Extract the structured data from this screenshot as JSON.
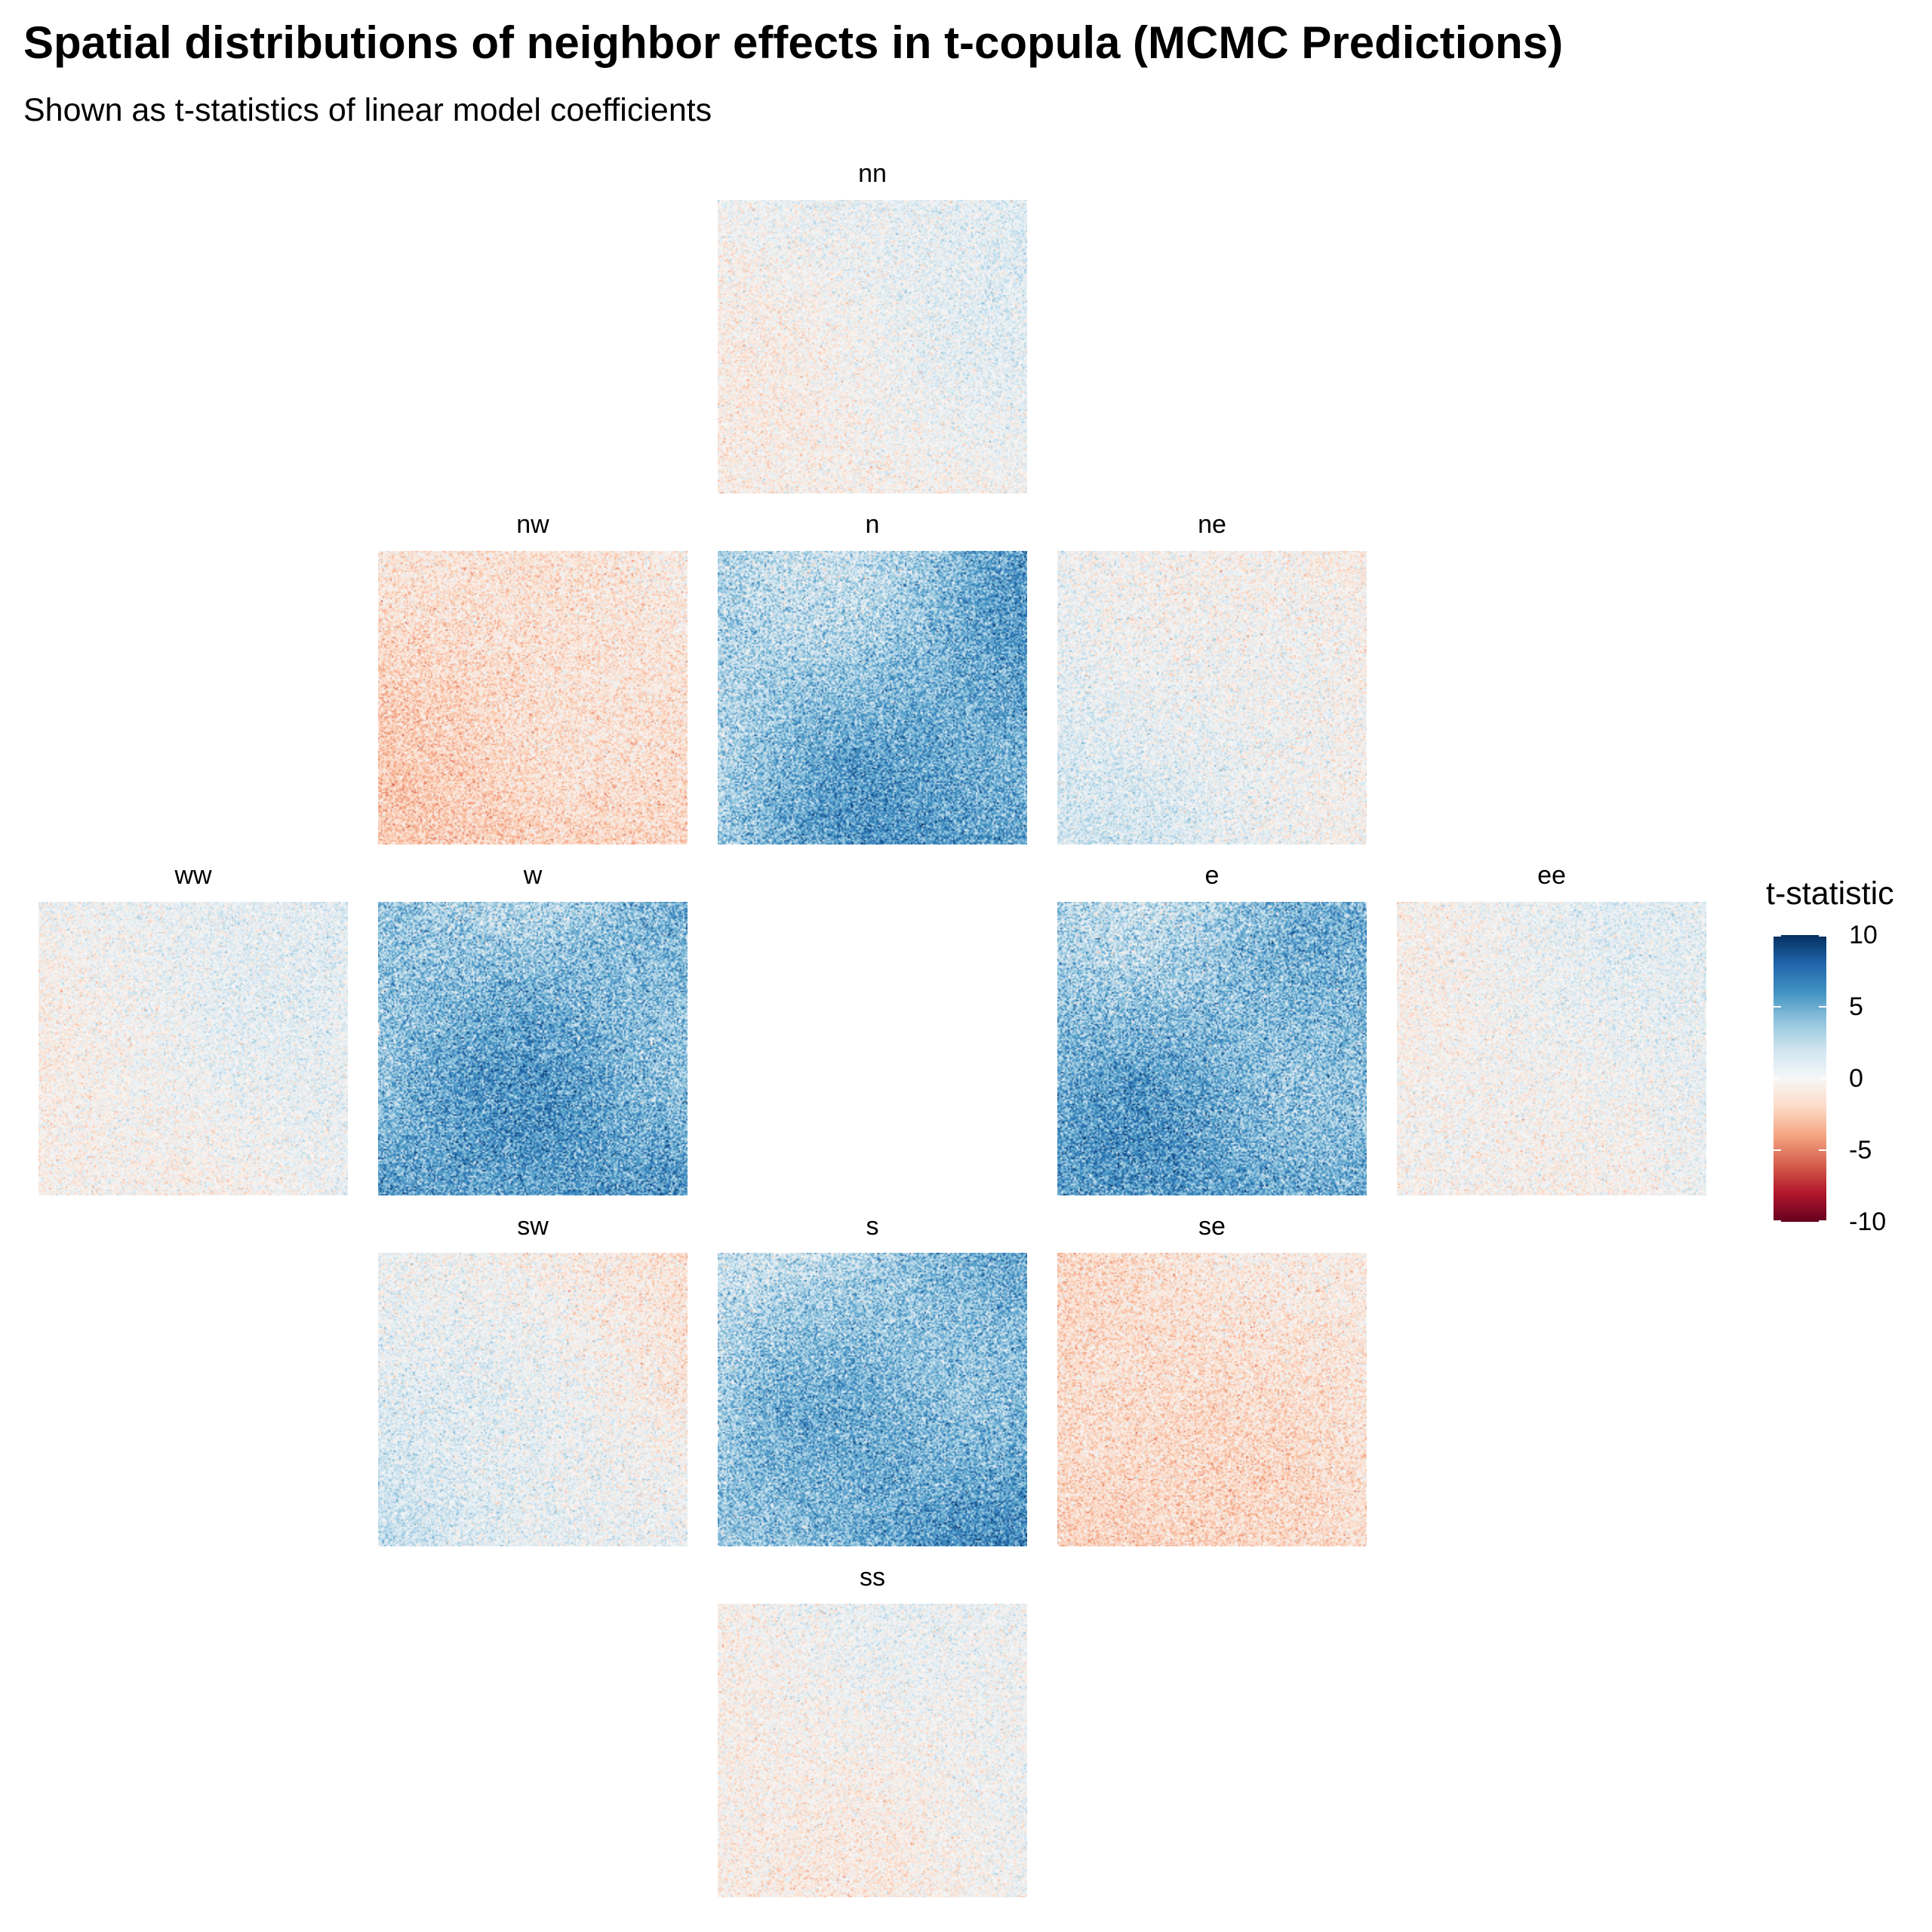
{
  "title": "Spatial distributions of neighbor effects in t-copula (MCMC Predictions)",
  "subtitle": "Shown as t-statistics of linear model coefficients",
  "chart_data": {
    "type": "heatmap",
    "facet_layout": "cross",
    "panels": [
      {
        "name": "nn",
        "mean": 0.2,
        "gradient": [
          0.6,
          -0.5
        ],
        "noise": 1.2
      },
      {
        "name": "nw",
        "mean": -1.6,
        "gradient": [
          0.4,
          -0.6
        ],
        "noise": 1.3
      },
      {
        "name": "n",
        "mean": 4.2,
        "gradient": [
          1.2,
          0.9
        ],
        "noise": 1.8
      },
      {
        "name": "ne",
        "mean": 0.4,
        "gradient": [
          -0.7,
          0.6
        ],
        "noise": 1.3
      },
      {
        "name": "ww",
        "mean": 0.3,
        "gradient": [
          0.5,
          -0.4
        ],
        "noise": 1.2
      },
      {
        "name": "w",
        "mean": 4.6,
        "gradient": [
          0.2,
          1.0
        ],
        "noise": 1.9
      },
      {
        "name": "e",
        "mean": 4.4,
        "gradient": [
          0.2,
          1.0
        ],
        "noise": 1.9
      },
      {
        "name": "ee",
        "mean": 0.2,
        "gradient": [
          0.5,
          -0.3
        ],
        "noise": 1.2
      },
      {
        "name": "sw",
        "mean": 0.4,
        "gradient": [
          -0.9,
          0.8
        ],
        "noise": 1.3
      },
      {
        "name": "s",
        "mean": 4.2,
        "gradient": [
          1.2,
          0.9
        ],
        "noise": 1.8
      },
      {
        "name": "se",
        "mean": -1.5,
        "gradient": [
          0.4,
          -0.4
        ],
        "noise": 1.3
      },
      {
        "name": "ss",
        "mean": -0.1,
        "gradient": [
          0.4,
          -0.4
        ],
        "noise": 1.2
      }
    ],
    "legend": {
      "title": "t-statistic",
      "ticks": [
        10,
        5,
        0,
        -5,
        -10
      ],
      "range": [
        -10,
        10
      ],
      "palette": [
        "#67001f",
        "#b2182b",
        "#d6604d",
        "#f4a582",
        "#fddbc7",
        "#f7f7f7",
        "#d1e5f0",
        "#92c5de",
        "#4393c3",
        "#2166ac",
        "#053061"
      ]
    }
  }
}
